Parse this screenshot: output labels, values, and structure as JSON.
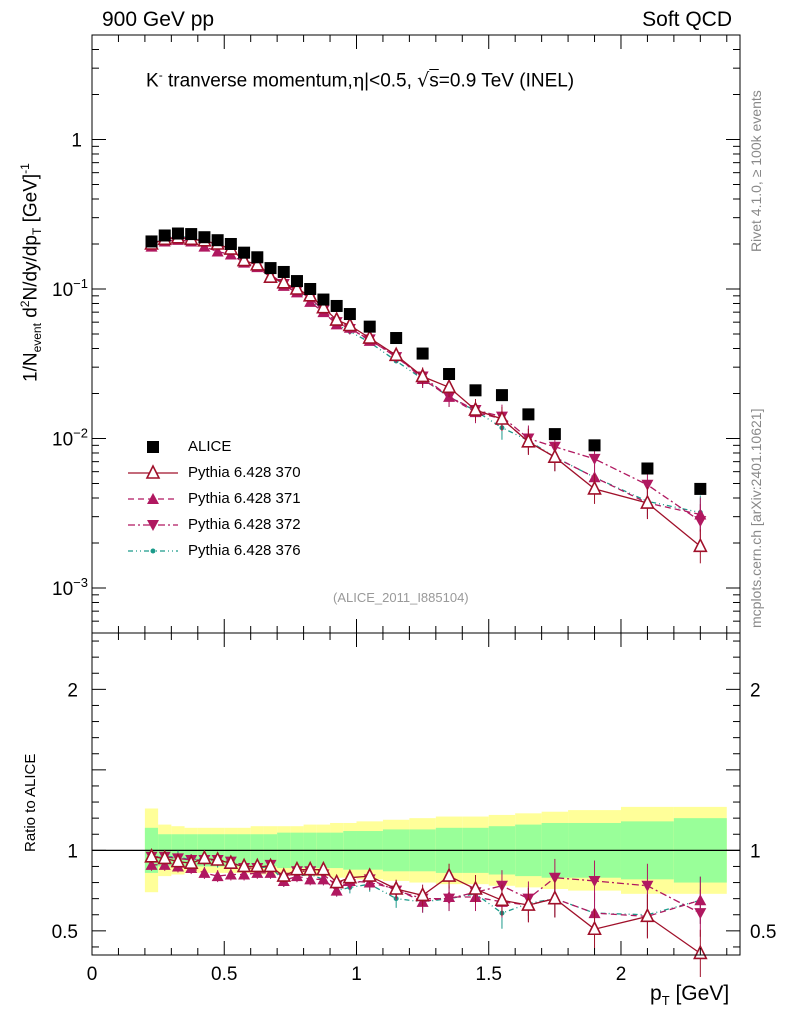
{
  "header": {
    "left_label": "900 GeV pp",
    "right_label": "Soft QCD"
  },
  "side": {
    "rivet_label": "Rivet 4.1.0, ≥ 100k events",
    "source_label": "mcplots.cern.ch [arXiv:2401.10621]"
  },
  "chart_data": [
    {
      "id": "main",
      "type": "scatter",
      "title_parts": {
        "particle": "K",
        "sup": "-",
        "rest": " tranverse momentum,",
        "eta_part": "|<0.5, ",
        "sqrt": "s",
        "energy": "=0.9 TeV (INEL)"
      },
      "ylabel_parts": {
        "a": "1/N",
        "a_sub": "event",
        "b": " d",
        "b_sup": "2",
        "c": "N/dy/dp",
        "c_sub": "T",
        "d": " [GeV]",
        "d_sup": "-1"
      },
      "yscale": "log",
      "ylim": [
        0.0005,
        5
      ],
      "xlim": [
        0,
        2.45
      ],
      "yticks": [
        {
          "value": 1,
          "base": "1",
          "exp": ""
        },
        {
          "value": 0.1,
          "base": "10",
          "exp": "−1"
        },
        {
          "value": 0.01,
          "base": "10",
          "exp": "−2"
        },
        {
          "value": 0.001,
          "base": "10",
          "exp": "−3"
        }
      ],
      "watermark": "(ALICE_2011_I885104)",
      "legend_position": "bottom-left",
      "x": [
        0.225,
        0.275,
        0.325,
        0.375,
        0.425,
        0.475,
        0.525,
        0.575,
        0.625,
        0.675,
        0.725,
        0.775,
        0.825,
        0.875,
        0.925,
        0.975,
        1.05,
        1.15,
        1.25,
        1.35,
        1.45,
        1.55,
        1.65,
        1.75,
        1.9,
        2.1,
        2.3
      ],
      "series": [
        {
          "name": "ALICE",
          "color": "#000000",
          "marker": "square",
          "line": "none",
          "values": [
            0.208,
            0.228,
            0.235,
            0.233,
            0.222,
            0.212,
            0.2,
            0.175,
            0.163,
            0.138,
            0.13,
            0.113,
            0.1,
            0.085,
            0.077,
            0.068,
            0.056,
            0.047,
            0.037,
            0.027,
            0.021,
            0.0195,
            0.0145,
            0.0107,
            0.009,
            0.0063,
            0.0046
          ]
        },
        {
          "name": "Pythia 6.428 370",
          "color": "#a0102a",
          "marker": "triangle-open",
          "line": "solid",
          "values": [
            0.2,
            0.215,
            0.22,
            0.215,
            0.21,
            0.2,
            0.185,
            0.155,
            0.145,
            0.12,
            0.11,
            0.1,
            0.09,
            0.075,
            0.062,
            0.057,
            0.047,
            0.036,
            0.026,
            0.022,
            0.0155,
            0.0135,
            0.0095,
            0.0075,
            0.0046,
            0.0037,
            0.0019
          ]
        },
        {
          "name": "Pythia 6.428 371",
          "color": "#b01860",
          "marker": "triangle-up",
          "line": "dashed",
          "values": [
            0.192,
            0.208,
            0.213,
            0.208,
            0.192,
            0.178,
            0.17,
            0.15,
            0.14,
            0.12,
            0.105,
            0.095,
            0.082,
            0.07,
            0.058,
            0.055,
            0.045,
            0.036,
            0.025,
            0.019,
            0.015,
            0.0135,
            0.0095,
            0.0075,
            0.0055,
            0.0037,
            0.0031
          ]
        },
        {
          "name": "Pythia 6.428 372",
          "color": "#b01860",
          "marker": "triangle-down",
          "line": "dashdot",
          "values": [
            0.2,
            0.218,
            0.222,
            0.218,
            0.208,
            0.2,
            0.185,
            0.155,
            0.145,
            0.125,
            0.108,
            0.098,
            0.087,
            0.072,
            0.06,
            0.054,
            0.046,
            0.035,
            0.026,
            0.019,
            0.0155,
            0.014,
            0.01,
            0.0088,
            0.0073,
            0.0049,
            0.0028
          ]
        },
        {
          "name": "Pythia 6.428 376",
          "color": "#1a9a8a",
          "marker": "dot",
          "line": "dashdotdot",
          "values": [
            0.2,
            0.22,
            0.225,
            0.22,
            0.21,
            0.198,
            0.185,
            0.155,
            0.145,
            0.125,
            0.105,
            0.095,
            0.085,
            0.07,
            0.058,
            0.052,
            0.044,
            0.033,
            0.025,
            0.019,
            0.0153,
            0.0118,
            0.0097,
            0.0075,
            0.0055,
            0.0038,
            0.0032
          ]
        }
      ]
    },
    {
      "id": "ratio",
      "type": "scatter",
      "ylabel": "Ratio to ALICE",
      "xlabel_parts": {
        "a": "p",
        "a_sub": "T",
        "b": " [GeV]"
      },
      "ylim": [
        0.35,
        2.35
      ],
      "xlim": [
        0,
        2.45
      ],
      "yticks": [
        {
          "value": 0.5,
          "label": "0.5"
        },
        {
          "value": 1,
          "label": "1"
        },
        {
          "value": 2,
          "label": "2"
        }
      ],
      "xticks": [
        {
          "value": 0,
          "label": "0"
        },
        {
          "value": 0.5,
          "label": "0.5"
        },
        {
          "value": 1,
          "label": "1"
        },
        {
          "value": 1.5,
          "label": "1.5"
        },
        {
          "value": 2,
          "label": "2"
        }
      ],
      "x": [
        0.225,
        0.275,
        0.325,
        0.375,
        0.425,
        0.475,
        0.525,
        0.575,
        0.625,
        0.675,
        0.725,
        0.775,
        0.825,
        0.875,
        0.925,
        0.975,
        1.05,
        1.15,
        1.25,
        1.35,
        1.45,
        1.55,
        1.65,
        1.75,
        1.9,
        2.1,
        2.3
      ],
      "bands": {
        "edges": [
          0.2,
          0.25,
          0.3,
          0.35,
          0.4,
          0.45,
          0.5,
          0.55,
          0.6,
          0.65,
          0.7,
          0.75,
          0.8,
          0.85,
          0.9,
          0.95,
          1.0,
          1.1,
          1.2,
          1.3,
          1.4,
          1.5,
          1.6,
          1.7,
          1.8,
          2.0,
          2.2,
          2.4
        ],
        "yellow_halfwidth": [
          0.26,
          0.16,
          0.15,
          0.14,
          0.14,
          0.14,
          0.14,
          0.14,
          0.15,
          0.15,
          0.15,
          0.15,
          0.16,
          0.16,
          0.17,
          0.17,
          0.18,
          0.19,
          0.2,
          0.21,
          0.21,
          0.22,
          0.23,
          0.24,
          0.25,
          0.27,
          0.27
        ],
        "green_halfwidth": [
          0.14,
          0.1,
          0.1,
          0.1,
          0.1,
          0.1,
          0.1,
          0.1,
          0.1,
          0.1,
          0.11,
          0.11,
          0.11,
          0.11,
          0.11,
          0.12,
          0.12,
          0.13,
          0.13,
          0.14,
          0.14,
          0.15,
          0.16,
          0.17,
          0.17,
          0.18,
          0.2
        ],
        "yellow_color": "#ffff99",
        "green_color": "#99ff99"
      },
      "series": [
        {
          "name": "Pythia 6.428 370",
          "color": "#a0102a",
          "marker": "triangle-open",
          "line": "solid",
          "values": [
            0.96,
            0.95,
            0.93,
            0.92,
            0.95,
            0.94,
            0.92,
            0.9,
            0.9,
            0.9,
            0.84,
            0.88,
            0.88,
            0.88,
            0.8,
            0.83,
            0.84,
            0.76,
            0.72,
            0.84,
            0.76,
            0.69,
            0.66,
            0.7,
            0.51,
            0.59,
            0.36
          ]
        },
        {
          "name": "Pythia 6.428 371",
          "color": "#b01860",
          "marker": "triangle-up",
          "line": "dashed",
          "values": [
            0.91,
            0.91,
            0.9,
            0.89,
            0.86,
            0.84,
            0.85,
            0.85,
            0.86,
            0.86,
            0.81,
            0.84,
            0.82,
            0.82,
            0.75,
            0.81,
            0.8,
            0.76,
            0.68,
            0.71,
            0.71,
            0.68,
            0.66,
            0.7,
            0.61,
            0.59,
            0.69
          ]
        },
        {
          "name": "Pythia 6.428 372",
          "color": "#b01860",
          "marker": "triangle-down",
          "line": "dashdot",
          "values": [
            0.96,
            0.96,
            0.95,
            0.94,
            0.94,
            0.94,
            0.93,
            0.89,
            0.89,
            0.91,
            0.83,
            0.87,
            0.87,
            0.85,
            0.78,
            0.79,
            0.82,
            0.75,
            0.7,
            0.7,
            0.74,
            0.78,
            0.7,
            0.83,
            0.81,
            0.78,
            0.61
          ]
        },
        {
          "name": "Pythia 6.428 376",
          "color": "#1a9a8a",
          "marker": "dot",
          "line": "dashdotdot",
          "values": [
            0.96,
            0.96,
            0.96,
            0.94,
            0.95,
            0.93,
            0.93,
            0.89,
            0.89,
            0.9,
            0.81,
            0.84,
            0.85,
            0.82,
            0.75,
            0.77,
            0.79,
            0.7,
            0.68,
            0.7,
            0.73,
            0.61,
            0.67,
            0.7,
            0.61,
            0.6,
            0.69
          ]
        }
      ]
    }
  ]
}
